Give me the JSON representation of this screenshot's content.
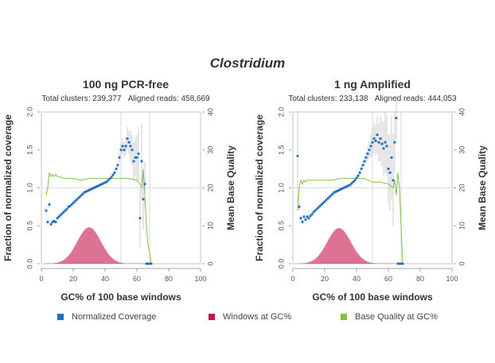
{
  "figure_title": "Clostridium",
  "legend": [
    {
      "label": "Normalized Coverage",
      "color": "#1f6fc5"
    },
    {
      "label": "Windows at GC%",
      "color": "#c8154a"
    },
    {
      "label": "Base Quality at GC%",
      "color": "#7fc241"
    }
  ],
  "chart_data": [
    {
      "type": "scatter",
      "title": "100 ng PCR-free",
      "subtitle": {
        "clusters": "Total clusters: 239,377",
        "reads": "Aligned reads: 458,669"
      },
      "xlabel": "GC% of 100 base windows",
      "ylabel": "Fraction of normalized coverage",
      "y2label": "Mean Base Quality",
      "xlim": [
        0,
        100
      ],
      "ylim": [
        0,
        2.0
      ],
      "y2lim": [
        0,
        40
      ],
      "xticks": [
        "0",
        "20",
        "40",
        "60",
        "80",
        "100"
      ],
      "yticks": [
        "0.0",
        "0.5",
        "1.0",
        "1.5",
        "2.0"
      ],
      "y2ticks": [
        "0",
        "10",
        "20",
        "30",
        "40"
      ],
      "ref_lines": {
        "x": [
          50,
          68
        ],
        "y": 1.0
      },
      "coverage": {
        "x": [
          3,
          4,
          5,
          6,
          7,
          8,
          9,
          10,
          11,
          12,
          13,
          14,
          15,
          16,
          17,
          18,
          19,
          20,
          21,
          22,
          23,
          24,
          25,
          26,
          27,
          28,
          29,
          30,
          31,
          32,
          33,
          34,
          35,
          36,
          37,
          38,
          39,
          40,
          41,
          42,
          43,
          44,
          45,
          46,
          47,
          48,
          49,
          50,
          51,
          52,
          53,
          54,
          55,
          56,
          57,
          58,
          59,
          60,
          61,
          62,
          63,
          64,
          65,
          66,
          67,
          68,
          69
        ],
        "y": [
          0.7,
          0.55,
          0.78,
          0.52,
          0.55,
          0.56,
          0.55,
          0.6,
          0.62,
          0.64,
          0.66,
          0.68,
          0.7,
          0.72,
          0.75,
          0.76,
          0.78,
          0.8,
          0.82,
          0.84,
          0.86,
          0.88,
          0.9,
          0.92,
          0.94,
          0.95,
          0.96,
          0.97,
          0.98,
          0.99,
          1.0,
          1.01,
          1.02,
          1.03,
          1.04,
          1.05,
          1.06,
          1.07,
          1.08,
          1.1,
          1.12,
          1.14,
          1.17,
          1.2,
          1.25,
          1.3,
          1.4,
          1.5,
          1.55,
          1.5,
          1.55,
          1.65,
          1.6,
          1.55,
          1.5,
          1.35,
          1.4,
          1.4,
          1.45,
          0.6,
          1.35,
          0.85,
          1.05,
          0.0,
          0.0,
          0.0,
          0.0
        ],
        "err": [
          0.05,
          0.04,
          0.04,
          0.03,
          0.03,
          0.03,
          0.02,
          0.02,
          0.02,
          0.02,
          0.02,
          0.02,
          0.02,
          0.02,
          0.02,
          0.02,
          0.02,
          0.02,
          0.02,
          0.02,
          0.02,
          0.02,
          0.02,
          0.02,
          0.02,
          0.02,
          0.02,
          0.02,
          0.02,
          0.02,
          0.02,
          0.02,
          0.02,
          0.02,
          0.02,
          0.02,
          0.02,
          0.02,
          0.02,
          0.02,
          0.02,
          0.03,
          0.03,
          0.03,
          0.04,
          0.05,
          0.06,
          0.08,
          0.1,
          0.1,
          0.12,
          0.15,
          0.15,
          0.2,
          0.2,
          0.25,
          0.25,
          0.3,
          0.35,
          0.4,
          0.5,
          0.4,
          0.3,
          0.0,
          0.0,
          0.0,
          0.0
        ]
      },
      "windows": {
        "center": 30,
        "spread": 7.5,
        "peak": 0.48,
        "xmin": 3,
        "xmax": 68
      },
      "quality": {
        "x": [
          3,
          4,
          5,
          6,
          7,
          8,
          9,
          10,
          15,
          20,
          25,
          30,
          35,
          40,
          45,
          50,
          55,
          60,
          62,
          63,
          64,
          65,
          66,
          67,
          68,
          69
        ],
        "y": [
          18,
          20,
          24,
          23,
          23.5,
          23,
          23.5,
          23,
          22.5,
          22.5,
          22,
          22.5,
          22.5,
          22.5,
          22.5,
          22.5,
          22.5,
          22,
          21,
          20,
          25,
          18,
          10,
          5,
          3,
          0
        ]
      }
    },
    {
      "type": "scatter",
      "title": "1 ng Amplified",
      "subtitle": {
        "clusters": "Total clusters: 233,138",
        "reads": "Aligned reads: 444,053"
      },
      "xlabel": "GC% of 100 base windows",
      "ylabel": "Fraction of normalized coverage",
      "y2label": "Mean Base Quality",
      "xlim": [
        0,
        100
      ],
      "ylim": [
        0,
        2.0
      ],
      "y2lim": [
        0,
        40
      ],
      "xticks": [
        "0",
        "20",
        "40",
        "60",
        "80",
        "100"
      ],
      "yticks": [
        "0.0",
        "0.5",
        "1.0",
        "1.5",
        "2.0"
      ],
      "y2ticks": [
        "0",
        "10",
        "20",
        "30",
        "40"
      ],
      "ref_lines": {
        "x": [
          50,
          68
        ],
        "y": 1.0
      },
      "coverage": {
        "x": [
          3,
          4,
          5,
          6,
          7,
          8,
          9,
          10,
          11,
          12,
          13,
          14,
          15,
          16,
          17,
          18,
          19,
          20,
          21,
          22,
          23,
          24,
          25,
          26,
          27,
          28,
          29,
          30,
          31,
          32,
          33,
          34,
          35,
          36,
          37,
          38,
          39,
          40,
          41,
          42,
          43,
          44,
          45,
          46,
          47,
          48,
          49,
          50,
          51,
          52,
          53,
          54,
          55,
          56,
          57,
          58,
          59,
          60,
          61,
          62,
          63,
          64,
          65,
          66,
          67,
          68,
          69
        ],
        "y": [
          1.42,
          0.75,
          0.6,
          0.55,
          0.62,
          0.58,
          0.62,
          0.6,
          0.63,
          0.65,
          0.68,
          0.7,
          0.72,
          0.74,
          0.76,
          0.78,
          0.8,
          0.82,
          0.84,
          0.86,
          0.88,
          0.9,
          0.92,
          0.94,
          0.95,
          0.96,
          0.97,
          0.98,
          0.99,
          1.0,
          1.01,
          1.02,
          1.03,
          1.04,
          1.06,
          1.08,
          1.1,
          1.13,
          1.16,
          1.2,
          1.25,
          1.3,
          1.35,
          1.4,
          1.45,
          1.5,
          1.55,
          1.6,
          1.65,
          1.62,
          1.7,
          1.6,
          1.65,
          1.58,
          1.52,
          1.6,
          1.55,
          1.25,
          1.2,
          1.4,
          1.1,
          1.6,
          1.92,
          0.0,
          0.0,
          0.0,
          0.0
        ],
        "err": [
          0.6,
          0.05,
          0.04,
          0.03,
          0.03,
          0.03,
          0.02,
          0.02,
          0.02,
          0.02,
          0.02,
          0.02,
          0.02,
          0.02,
          0.02,
          0.02,
          0.02,
          0.02,
          0.02,
          0.02,
          0.02,
          0.02,
          0.02,
          0.02,
          0.02,
          0.02,
          0.02,
          0.02,
          0.02,
          0.02,
          0.02,
          0.02,
          0.02,
          0.02,
          0.02,
          0.02,
          0.03,
          0.03,
          0.03,
          0.04,
          0.05,
          0.06,
          0.07,
          0.08,
          0.1,
          0.12,
          0.15,
          0.18,
          0.2,
          0.2,
          0.25,
          0.25,
          0.3,
          0.3,
          0.35,
          0.4,
          0.4,
          0.45,
          0.5,
          0.55,
          0.6,
          0.4,
          0.3,
          0.0,
          0.0,
          0.0,
          0.0
        ]
      },
      "windows": {
        "center": 29,
        "spread": 7.5,
        "peak": 0.47,
        "xmin": 3,
        "xmax": 68
      },
      "quality": {
        "x": [
          3,
          4,
          5,
          6,
          7,
          8,
          9,
          10,
          15,
          20,
          25,
          30,
          35,
          40,
          45,
          50,
          55,
          60,
          63,
          64,
          65,
          66,
          67,
          68,
          69
        ],
        "y": [
          14,
          20,
          22,
          21,
          22,
          21.5,
          22,
          22,
          22,
          22,
          22,
          22.5,
          22.5,
          22.5,
          22.5,
          21.5,
          21.5,
          21,
          20,
          22,
          18,
          24,
          20,
          10,
          0
        ]
      }
    }
  ]
}
